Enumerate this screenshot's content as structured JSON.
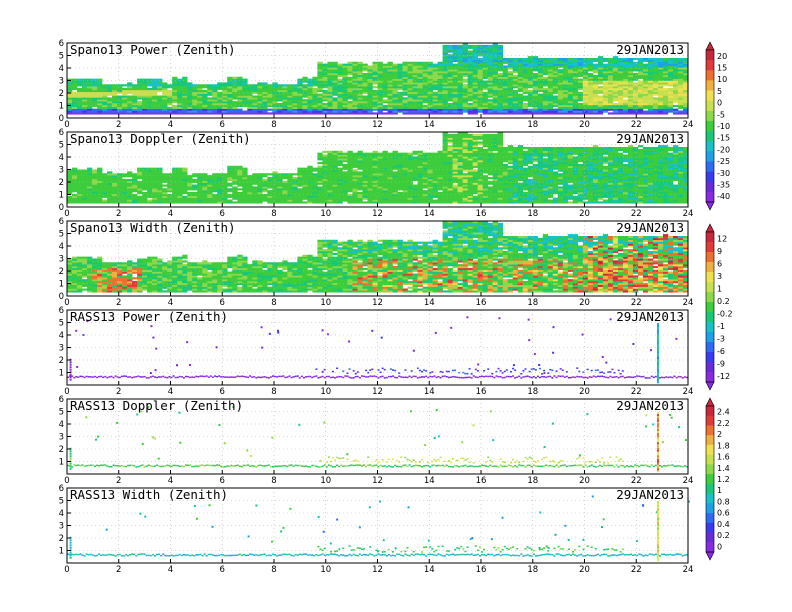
{
  "figure": {
    "date_label": "29JAN2013"
  },
  "chart_data": [
    {
      "type": "heatmap",
      "title": "Spano13 Power (Zenith)",
      "date": "29JAN2013",
      "xlim": [
        0,
        24
      ],
      "ylim": [
        0,
        6
      ],
      "colorbar": "power",
      "x_ticks": [
        0,
        2,
        4,
        6,
        8,
        10,
        12,
        14,
        16,
        18,
        20,
        22,
        24
      ],
      "y_ticks": [
        0,
        1,
        2,
        3,
        4,
        5,
        6
      ],
      "grid": "dotted"
    },
    {
      "type": "heatmap",
      "title": "Spano13 Doppler (Zenith)",
      "date": "29JAN2013",
      "xlim": [
        0,
        24
      ],
      "ylim": [
        0,
        6
      ],
      "colorbar": "power",
      "x_ticks": [
        0,
        2,
        4,
        6,
        8,
        10,
        12,
        14,
        16,
        18,
        20,
        22,
        24
      ],
      "y_ticks": [
        0,
        1,
        2,
        3,
        4,
        5,
        6
      ],
      "grid": "dotted"
    },
    {
      "type": "heatmap",
      "title": "Spano13 Width (Zenith)",
      "date": "29JAN2013",
      "xlim": [
        0,
        24
      ],
      "ylim": [
        0,
        6
      ],
      "colorbar": "doppler",
      "x_ticks": [
        0,
        2,
        4,
        6,
        8,
        10,
        12,
        14,
        16,
        18,
        20,
        22,
        24
      ],
      "y_ticks": [
        0,
        1,
        2,
        3,
        4,
        5,
        6
      ],
      "grid": "dotted"
    },
    {
      "type": "scatter",
      "title": "RASS13 Power (Zenith)",
      "date": "29JAN2013",
      "xlim": [
        0,
        24
      ],
      "ylim": [
        0,
        6
      ],
      "colorbar": "doppler",
      "x_ticks": [
        0,
        2,
        4,
        6,
        8,
        10,
        12,
        14,
        16,
        18,
        20,
        22,
        24
      ],
      "y_ticks": [
        1,
        2,
        3,
        4,
        5,
        6
      ],
      "grid": "dotted"
    },
    {
      "type": "scatter",
      "title": "RASS13 Doppler (Zenith)",
      "date": "29JAN2013",
      "xlim": [
        0,
        24
      ],
      "ylim": [
        0,
        6
      ],
      "colorbar": "width",
      "x_ticks": [
        0,
        2,
        4,
        6,
        8,
        10,
        12,
        14,
        16,
        18,
        20,
        22,
        24
      ],
      "y_ticks": [
        1,
        2,
        3,
        4,
        5,
        6
      ],
      "grid": "dotted"
    },
    {
      "type": "scatter",
      "title": "RASS13 Width (Zenith)",
      "date": "29JAN2013",
      "xlim": [
        0,
        24
      ],
      "ylim": [
        0,
        6
      ],
      "colorbar": "width",
      "x_ticks": [
        0,
        2,
        4,
        6,
        8,
        10,
        12,
        14,
        16,
        18,
        20,
        22,
        24
      ],
      "y_ticks": [
        1,
        2,
        3,
        4,
        5,
        6
      ],
      "grid": "dotted"
    }
  ],
  "colorbars": {
    "power": {
      "labels": [
        "20",
        "15",
        "10",
        "5",
        "0",
        "-5",
        "-10",
        "-15",
        "-20",
        "-25",
        "-30",
        "-35",
        "-40"
      ]
    },
    "doppler": {
      "labels": [
        "12",
        "9",
        "6",
        "3",
        "1",
        "0.2",
        "-0.2",
        "-1",
        "-3",
        "-6",
        "-9",
        "-12"
      ]
    },
    "width": {
      "labels": [
        "2.4",
        "2.2",
        "2",
        "1.8",
        "1.6",
        "1.4",
        "1.2",
        "1",
        "0.8",
        "0.6",
        "0.4",
        "0.2",
        "0"
      ]
    }
  },
  "colors": {
    "palette": [
      "#8a2be2",
      "#6a2bd8",
      "#3a3af0",
      "#2f6bf2",
      "#1ea0e6",
      "#18c0c8",
      "#18c878",
      "#3ccc3c",
      "#8cd84a",
      "#c8e050",
      "#f0e050",
      "#f0b040",
      "#ec7030",
      "#e03a3a",
      "#c8283c"
    ],
    "axis": "#000000",
    "grid": "#b4b4b4"
  }
}
